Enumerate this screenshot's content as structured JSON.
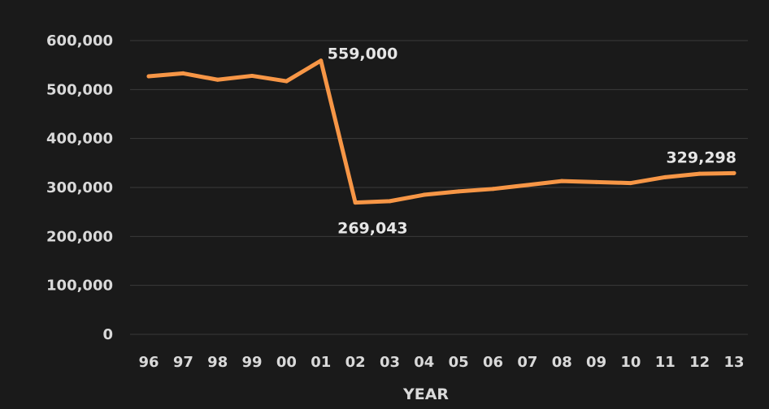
{
  "chart_data": {
    "type": "line",
    "xlabel": "YEAR",
    "ylabel": "",
    "ylim": [
      0,
      600000
    ],
    "yticks": [
      0,
      100000,
      200000,
      300000,
      400000,
      500000,
      600000
    ],
    "ytick_labels": [
      "0",
      "100,000",
      "200,000",
      "300,000",
      "400,000",
      "500,000",
      "600,000"
    ],
    "categories": [
      "96",
      "97",
      "98",
      "99",
      "00",
      "01",
      "02",
      "03",
      "04",
      "05",
      "06",
      "07",
      "08",
      "09",
      "10",
      "11",
      "12",
      "13"
    ],
    "values": [
      527000,
      533000,
      520000,
      528000,
      517000,
      559000,
      269043,
      272000,
      285000,
      292000,
      297000,
      305000,
      313000,
      311000,
      309000,
      321000,
      328000,
      329298
    ],
    "data_labels": [
      {
        "index": 5,
        "text": "559,000"
      },
      {
        "index": 6,
        "text": "269,043"
      },
      {
        "index": 17,
        "text": "329,298"
      }
    ],
    "grid": true,
    "line_color": "#f79646",
    "background_color": "#1a1a1a",
    "gridline_color": "#3a3a3a",
    "text_color": "#d9d9d9"
  }
}
